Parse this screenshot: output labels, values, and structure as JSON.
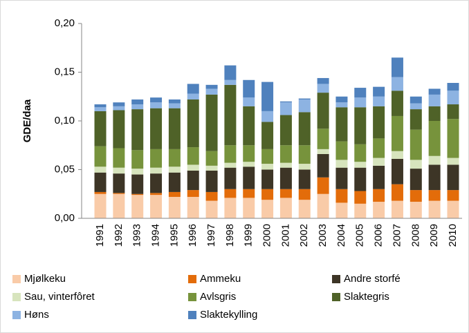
{
  "chart_data": {
    "type": "stacked_bar",
    "y_label": "GDE/daa",
    "categories": [
      "1991",
      "1992",
      "1993",
      "1994",
      "1995",
      "1996",
      "1997",
      "1998",
      "1999",
      "2000",
      "2001",
      "2002",
      "2003",
      "2004",
      "2005",
      "2006",
      "2007",
      "2008",
      "2009",
      "2010"
    ],
    "ylim": [
      0,
      0.2
    ],
    "yticks": [
      {
        "value": 0,
        "label": "0,00"
      },
      {
        "value": 0.05,
        "label": "0,05"
      },
      {
        "value": 0.1,
        "label": "0,10"
      },
      {
        "value": 0.15,
        "label": "0,15"
      },
      {
        "value": 0.2,
        "label": "0,20"
      }
    ],
    "series": [
      {
        "name": "Mjølkeku",
        "color": "#f9cba8",
        "values": [
          0.025,
          0.025,
          0.024,
          0.024,
          0.022,
          0.022,
          0.018,
          0.021,
          0.021,
          0.019,
          0.021,
          0.019,
          0.025,
          0.016,
          0.015,
          0.017,
          0.018,
          0.017,
          0.018,
          0.018
        ]
      },
      {
        "name": "Ammeku",
        "color": "#e36c0a",
        "values": [
          0.002,
          0.001,
          0.001,
          0.002,
          0.005,
          0.007,
          0.009,
          0.009,
          0.009,
          0.011,
          0.009,
          0.011,
          0.017,
          0.014,
          0.013,
          0.013,
          0.017,
          0.012,
          0.011,
          0.011
        ]
      },
      {
        "name": "Andre storfé",
        "color": "#3d3526",
        "values": [
          0.02,
          0.02,
          0.02,
          0.02,
          0.02,
          0.02,
          0.022,
          0.022,
          0.023,
          0.02,
          0.022,
          0.02,
          0.024,
          0.022,
          0.024,
          0.024,
          0.026,
          0.022,
          0.026,
          0.026
        ]
      },
      {
        "name": "Sau, vinterfôret",
        "color": "#d7e4bd",
        "values": [
          0.006,
          0.006,
          0.006,
          0.006,
          0.006,
          0.006,
          0.005,
          0.005,
          0.005,
          0.006,
          0.005,
          0.006,
          0.005,
          0.008,
          0.006,
          0.008,
          0.008,
          0.009,
          0.009,
          0.007
        ]
      },
      {
        "name": "Avlsgris",
        "color": "#77933c",
        "values": [
          0.021,
          0.02,
          0.019,
          0.019,
          0.018,
          0.018,
          0.015,
          0.018,
          0.017,
          0.015,
          0.018,
          0.019,
          0.021,
          0.019,
          0.018,
          0.02,
          0.036,
          0.031,
          0.036,
          0.04
        ]
      },
      {
        "name": "Slaktegris",
        "color": "#4f6228",
        "values": [
          0.036,
          0.039,
          0.042,
          0.042,
          0.042,
          0.049,
          0.058,
          0.062,
          0.04,
          0.028,
          0.031,
          0.034,
          0.037,
          0.035,
          0.038,
          0.033,
          0.026,
          0.021,
          0.015,
          0.015
        ]
      },
      {
        "name": "Høns",
        "color": "#8db3e2",
        "values": [
          0.004,
          0.004,
          0.005,
          0.006,
          0.005,
          0.006,
          0.006,
          0.005,
          0.009,
          0.011,
          0.013,
          0.013,
          0.009,
          0.005,
          0.01,
          0.01,
          0.014,
          0.006,
          0.012,
          0.014
        ]
      },
      {
        "name": "Slaktekylling",
        "color": "#4f81bd",
        "values": [
          0.003,
          0.004,
          0.005,
          0.005,
          0.004,
          0.01,
          0.004,
          0.015,
          0.018,
          0.03,
          0.001,
          0.001,
          0.006,
          0.006,
          0.01,
          0.01,
          0.02,
          0.007,
          0.006,
          0.008
        ]
      }
    ]
  }
}
